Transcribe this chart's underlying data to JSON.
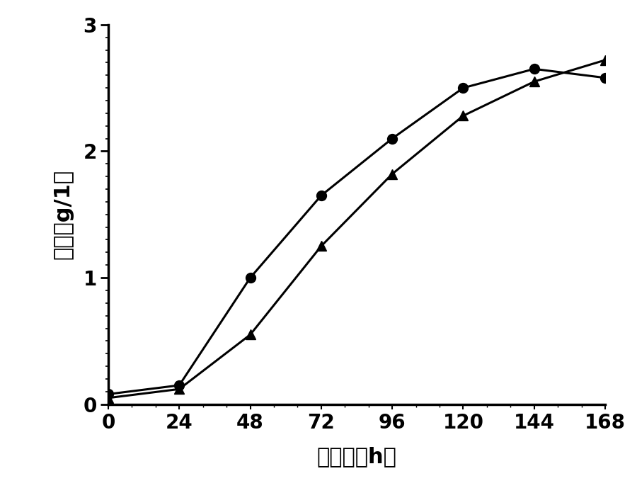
{
  "x": [
    0,
    24,
    48,
    72,
    96,
    120,
    144,
    168
  ],
  "series1_y": [
    0.08,
    0.15,
    1.0,
    1.65,
    2.1,
    2.5,
    2.65,
    2.58
  ],
  "series2_y": [
    0.05,
    0.12,
    0.55,
    1.25,
    1.82,
    2.28,
    2.55,
    2.72
  ],
  "line_color": "#000000",
  "line_width": 2.2,
  "marker1": "o",
  "marker2": "^",
  "marker_size": 10,
  "xlabel": "时间　（h）",
  "ylabel": "干重（g/1）",
  "xlim": [
    0,
    168
  ],
  "ylim": [
    0,
    3
  ],
  "xticks": [
    0,
    24,
    48,
    72,
    96,
    120,
    144,
    168
  ],
  "yticks": [
    0,
    1,
    2,
    3
  ],
  "background_color": "#ffffff",
  "tick_label_fontsize": 20,
  "axis_label_fontsize": 22,
  "spine_linewidth": 2.5
}
